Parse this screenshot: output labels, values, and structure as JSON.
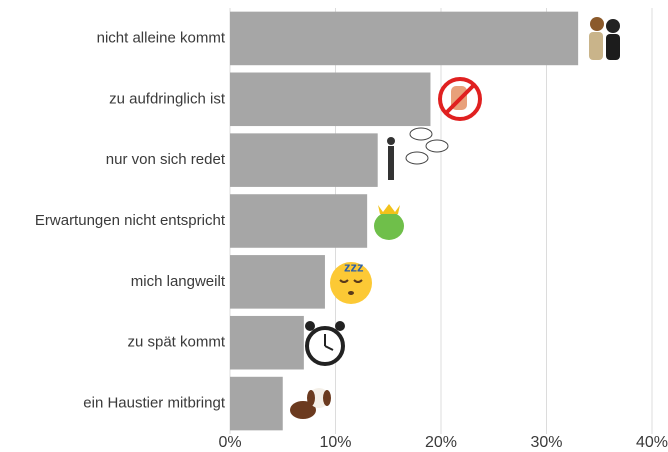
{
  "chart_data": {
    "type": "bar",
    "orientation": "horizontal",
    "categories": [
      "nicht alleine kommt",
      "zu aufdringlich ist",
      "nur von sich redet",
      "Erwartungen nicht entspricht",
      "mich langweilt",
      "zu spät kommt",
      "ein Haustier mitbringt"
    ],
    "values": [
      33,
      19,
      14,
      13,
      9,
      7,
      5
    ],
    "color": "#a6a6a6",
    "xlim": [
      0,
      40
    ],
    "xticks": [
      {
        "value": 0,
        "label": "0%"
      },
      {
        "value": 10,
        "label": "10%"
      },
      {
        "value": 20,
        "label": "20%"
      },
      {
        "value": 30,
        "label": "30%"
      },
      {
        "value": 40,
        "label": "40%"
      }
    ],
    "grid": true
  }
}
